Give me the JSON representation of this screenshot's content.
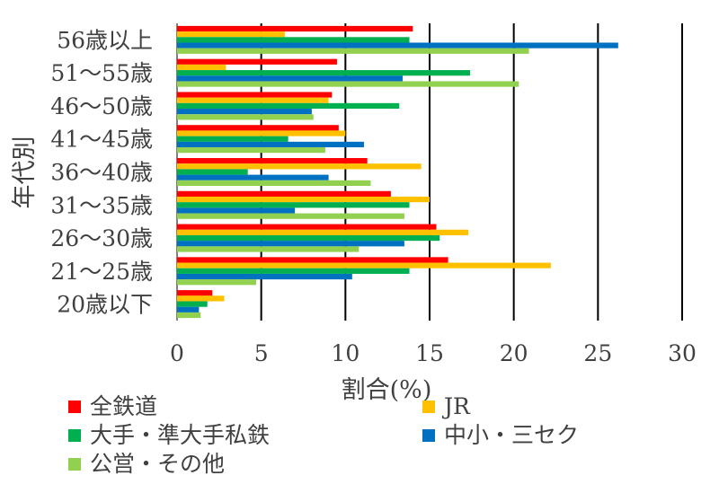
{
  "chart_data": {
    "type": "bar",
    "orientation": "horizontal",
    "ylabel": "年代別",
    "xlabel": "割合(%)",
    "xlim": [
      0,
      30
    ],
    "xticks": [
      "0",
      "5",
      "10",
      "15",
      "20",
      "25",
      "30"
    ],
    "grid": "vertical",
    "legend_position": "bottom",
    "categories": [
      "56歳以上",
      "51～55歳",
      "46～50歳",
      "41～45歳",
      "36～40歳",
      "31～35歳",
      "26～30歳",
      "21～25歳",
      "20歳以下"
    ],
    "series": [
      {
        "name": "全鉄道",
        "color": "#ff0000",
        "values": [
          14.0,
          9.5,
          9.2,
          9.6,
          11.3,
          12.7,
          15.4,
          16.1,
          2.1
        ]
      },
      {
        "name": "JR",
        "color": "#ffc000",
        "values": [
          6.4,
          2.9,
          9.0,
          10.0,
          14.5,
          15.0,
          17.3,
          22.2,
          2.8
        ]
      },
      {
        "name": "大手・準大手私鉄",
        "color": "#00b050",
        "values": [
          13.8,
          17.4,
          13.2,
          6.6,
          4.2,
          13.8,
          15.6,
          13.8,
          1.8
        ]
      },
      {
        "name": "中小・三セク",
        "color": "#0070c0",
        "values": [
          26.2,
          13.4,
          8.0,
          11.1,
          9.0,
          7.0,
          13.5,
          10.4,
          1.3
        ]
      },
      {
        "name": "公営・その他",
        "color": "#92d050",
        "values": [
          20.9,
          20.3,
          8.1,
          8.8,
          11.5,
          13.5,
          10.8,
          4.7,
          1.4
        ]
      }
    ]
  }
}
